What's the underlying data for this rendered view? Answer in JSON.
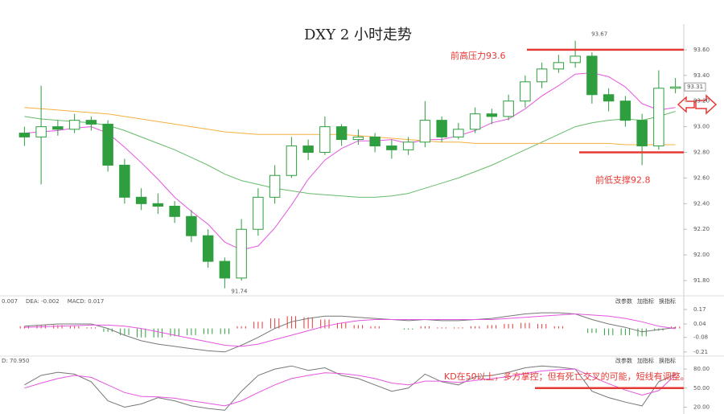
{
  "chart_data": [
    {
      "type": "candlestick",
      "title": "DXY 2 小时走势",
      "color": "#2e9e3e",
      "open": [
        92.95,
        92.92,
        93.0,
        92.98,
        93.05,
        93.02,
        92.7,
        92.45,
        92.4,
        92.38,
        92.3,
        92.15,
        91.95,
        91.82,
        92.2,
        92.45,
        92.62,
        92.85,
        92.8,
        93.0,
        92.9,
        92.92,
        92.85,
        92.82,
        92.88,
        93.05,
        92.92,
        92.98,
        93.1,
        93.08,
        93.2,
        93.35,
        93.45,
        93.5,
        93.55,
        93.25,
        93.2,
        93.05,
        92.85,
        93.3
      ],
      "high": [
        93.0,
        93.32,
        93.05,
        93.1,
        93.08,
        93.05,
        92.75,
        92.52,
        92.48,
        92.42,
        92.35,
        92.2,
        91.98,
        92.28,
        92.52,
        92.7,
        92.92,
        92.9,
        93.08,
        93.02,
        92.98,
        92.95,
        92.9,
        92.92,
        93.2,
        93.08,
        93.03,
        93.15,
        93.14,
        93.25,
        93.4,
        93.5,
        93.56,
        93.67,
        93.58,
        93.3,
        93.24,
        93.1,
        93.44,
        93.38
      ],
      "low": [
        92.85,
        92.55,
        92.93,
        92.95,
        92.97,
        92.65,
        92.4,
        92.35,
        92.32,
        92.25,
        92.1,
        91.9,
        91.74,
        91.8,
        92.15,
        92.4,
        92.6,
        92.74,
        92.78,
        92.85,
        92.86,
        92.8,
        92.75,
        92.78,
        92.84,
        92.88,
        92.9,
        92.95,
        93.02,
        93.05,
        93.15,
        93.3,
        93.42,
        93.46,
        93.18,
        93.12,
        93.0,
        92.7,
        92.82,
        93.26
      ],
      "close": [
        92.92,
        93.0,
        92.98,
        93.05,
        93.02,
        92.7,
        92.45,
        92.4,
        92.38,
        92.3,
        92.15,
        91.95,
        91.82,
        92.2,
        92.45,
        92.62,
        92.85,
        92.8,
        93.0,
        92.9,
        92.92,
        92.85,
        92.82,
        92.88,
        93.05,
        92.92,
        92.98,
        93.1,
        93.08,
        93.2,
        93.35,
        93.45,
        93.5,
        93.55,
        93.25,
        93.2,
        93.05,
        92.85,
        93.3,
        93.31
      ],
      "series": [
        {
          "color": "#e455e0",
          "values": [
            92.95,
            92.96,
            92.97,
            92.99,
            93.0,
            92.95,
            92.84,
            92.72,
            92.59,
            92.45,
            92.34,
            92.24,
            92.1,
            92.04,
            92.07,
            92.21,
            92.39,
            92.59,
            92.74,
            92.83,
            92.89,
            92.89,
            92.9,
            92.87,
            92.9,
            92.9,
            92.93,
            92.97,
            93.03,
            93.06,
            93.14,
            93.24,
            93.32,
            93.41,
            93.42,
            93.39,
            93.31,
            93.18,
            93.13,
            93.15
          ]
        },
        {
          "color": "#66bb6a",
          "values": [
            93.08,
            93.06,
            93.05,
            93.04,
            93.03,
            93.01,
            92.97,
            92.92,
            92.87,
            92.82,
            92.76,
            92.7,
            92.63,
            92.58,
            92.55,
            92.52,
            92.5,
            92.48,
            92.47,
            92.46,
            92.45,
            92.45,
            92.46,
            92.48,
            92.52,
            92.56,
            92.6,
            92.65,
            92.7,
            92.76,
            92.82,
            92.88,
            92.94,
            93.0,
            93.03,
            93.05,
            93.06,
            93.05,
            93.08,
            93.12
          ]
        },
        {
          "color": "#f5b041",
          "values": [
            93.15,
            93.14,
            93.13,
            93.12,
            93.11,
            93.1,
            93.08,
            93.06,
            93.04,
            93.02,
            93.0,
            92.98,
            92.96,
            92.95,
            92.94,
            92.94,
            92.94,
            92.94,
            92.94,
            92.94,
            92.93,
            92.92,
            92.91,
            92.9,
            92.89,
            92.88,
            92.88,
            92.87,
            92.87,
            92.87,
            92.87,
            92.87,
            92.87,
            92.87,
            92.87,
            92.87,
            92.86,
            92.86,
            92.86,
            92.86
          ]
        }
      ],
      "ylim": [
        91.7,
        93.8
      ],
      "yticks": [
        {
          "value": 93.6,
          "label": "93.60"
        },
        {
          "value": 93.4,
          "label": "93.40"
        },
        {
          "value": 93.2,
          "label": "93.20"
        },
        {
          "value": 93.0,
          "label": "93.00"
        },
        {
          "value": 92.8,
          "label": "92.80"
        },
        {
          "value": 92.6,
          "label": "92.60"
        },
        {
          "value": 92.4,
          "label": "92.40"
        },
        {
          "value": 92.2,
          "label": "92.20"
        },
        {
          "value": 92.0,
          "label": "92.00"
        },
        {
          "value": 91.8,
          "label": "91.80"
        }
      ],
      "hlines": [
        {
          "value": 93.6,
          "label": "前高压力93.6",
          "color": "#e53935"
        },
        {
          "value": 92.8,
          "label": "前低支撑92.8",
          "color": "#e53935"
        }
      ],
      "high_label": "93.67",
      "low_label": "91.74",
      "last_label": "93.31"
    },
    {
      "type": "macd",
      "header": [
        "0.007",
        "DEA: -0.002",
        "MACD: 0.017"
      ],
      "buttons": [
        "改参数",
        "加指标",
        "换指标"
      ],
      "hist": [
        0.02,
        0.03,
        0.03,
        0.02,
        0.01,
        -0.03,
        -0.06,
        -0.08,
        -0.08,
        -0.07,
        -0.06,
        -0.05,
        -0.05,
        0.02,
        0.06,
        0.09,
        0.11,
        0.1,
        0.08,
        0.05,
        0.03,
        0.02,
        0.0,
        -0.01,
        0.02,
        0.01,
        0.01,
        0.02,
        0.03,
        0.04,
        0.05,
        0.04,
        0.02,
        0.0,
        -0.04,
        -0.06,
        -0.06,
        -0.07,
        -0.02,
        0.017
      ],
      "up_color": "#e53935",
      "down_color": "#2e9e3e",
      "series": [
        {
          "color": "#777777",
          "values": [
            0.02,
            0.03,
            0.04,
            0.04,
            0.04,
            0.0,
            -0.06,
            -0.11,
            -0.14,
            -0.16,
            -0.18,
            -0.2,
            -0.21,
            -0.15,
            -0.08,
            0.0,
            0.06,
            0.09,
            0.11,
            0.11,
            0.1,
            0.09,
            0.08,
            0.07,
            0.08,
            0.07,
            0.07,
            0.08,
            0.09,
            0.11,
            0.13,
            0.14,
            0.14,
            0.13,
            0.08,
            0.04,
            0.01,
            -0.03,
            -0.01,
            0.007
          ]
        },
        {
          "color": "#e455e0",
          "values": [
            0.01,
            0.015,
            0.02,
            0.025,
            0.03,
            0.03,
            0.02,
            0.0,
            -0.03,
            -0.06,
            -0.09,
            -0.12,
            -0.15,
            -0.16,
            -0.14,
            -0.1,
            -0.06,
            -0.02,
            0.02,
            0.05,
            0.07,
            0.08,
            0.08,
            0.08,
            0.08,
            0.08,
            0.08,
            0.08,
            0.08,
            0.09,
            0.1,
            0.11,
            0.12,
            0.13,
            0.12,
            0.11,
            0.09,
            0.06,
            0.02,
            -0.002
          ]
        }
      ],
      "ylim": [
        -0.24,
        0.22
      ],
      "yticks": [
        0.17,
        0.04,
        -0.08,
        -0.21
      ]
    },
    {
      "type": "line",
      "header": [
        "D: 70.950"
      ],
      "buttons": [
        "改参数",
        "加指标",
        "换指标"
      ],
      "series": [
        {
          "color": "#777777",
          "values": [
            55,
            70,
            75,
            72,
            60,
            30,
            20,
            25,
            35,
            30,
            22,
            18,
            15,
            45,
            70,
            80,
            85,
            78,
            82,
            70,
            65,
            55,
            45,
            50,
            72,
            60,
            55,
            68,
            70,
            75,
            82,
            85,
            83,
            80,
            45,
            35,
            28,
            22,
            60,
            72
          ]
        },
        {
          "color": "#e455e0",
          "values": [
            50,
            58,
            65,
            70,
            67,
            55,
            43,
            37,
            36,
            34,
            30,
            26,
            22,
            30,
            43,
            55,
            65,
            70,
            74,
            73,
            70,
            65,
            58,
            55,
            61,
            61,
            59,
            62,
            65,
            68,
            73,
            77,
            79,
            80,
            68,
            57,
            47,
            39,
            46,
            70.95
          ]
        }
      ],
      "ylim": [
        13,
        89
      ],
      "yticks": [
        {
          "value": 80,
          "label": "80.00"
        },
        {
          "value": 50,
          "label": "50.00"
        },
        {
          "value": 20,
          "label": "20.00"
        }
      ],
      "hlines": [
        {
          "value": 50,
          "label": "KD在50以上，多方掌控；但有死亡交叉的可能，短线有调整。",
          "color": "#e53935"
        }
      ]
    }
  ]
}
